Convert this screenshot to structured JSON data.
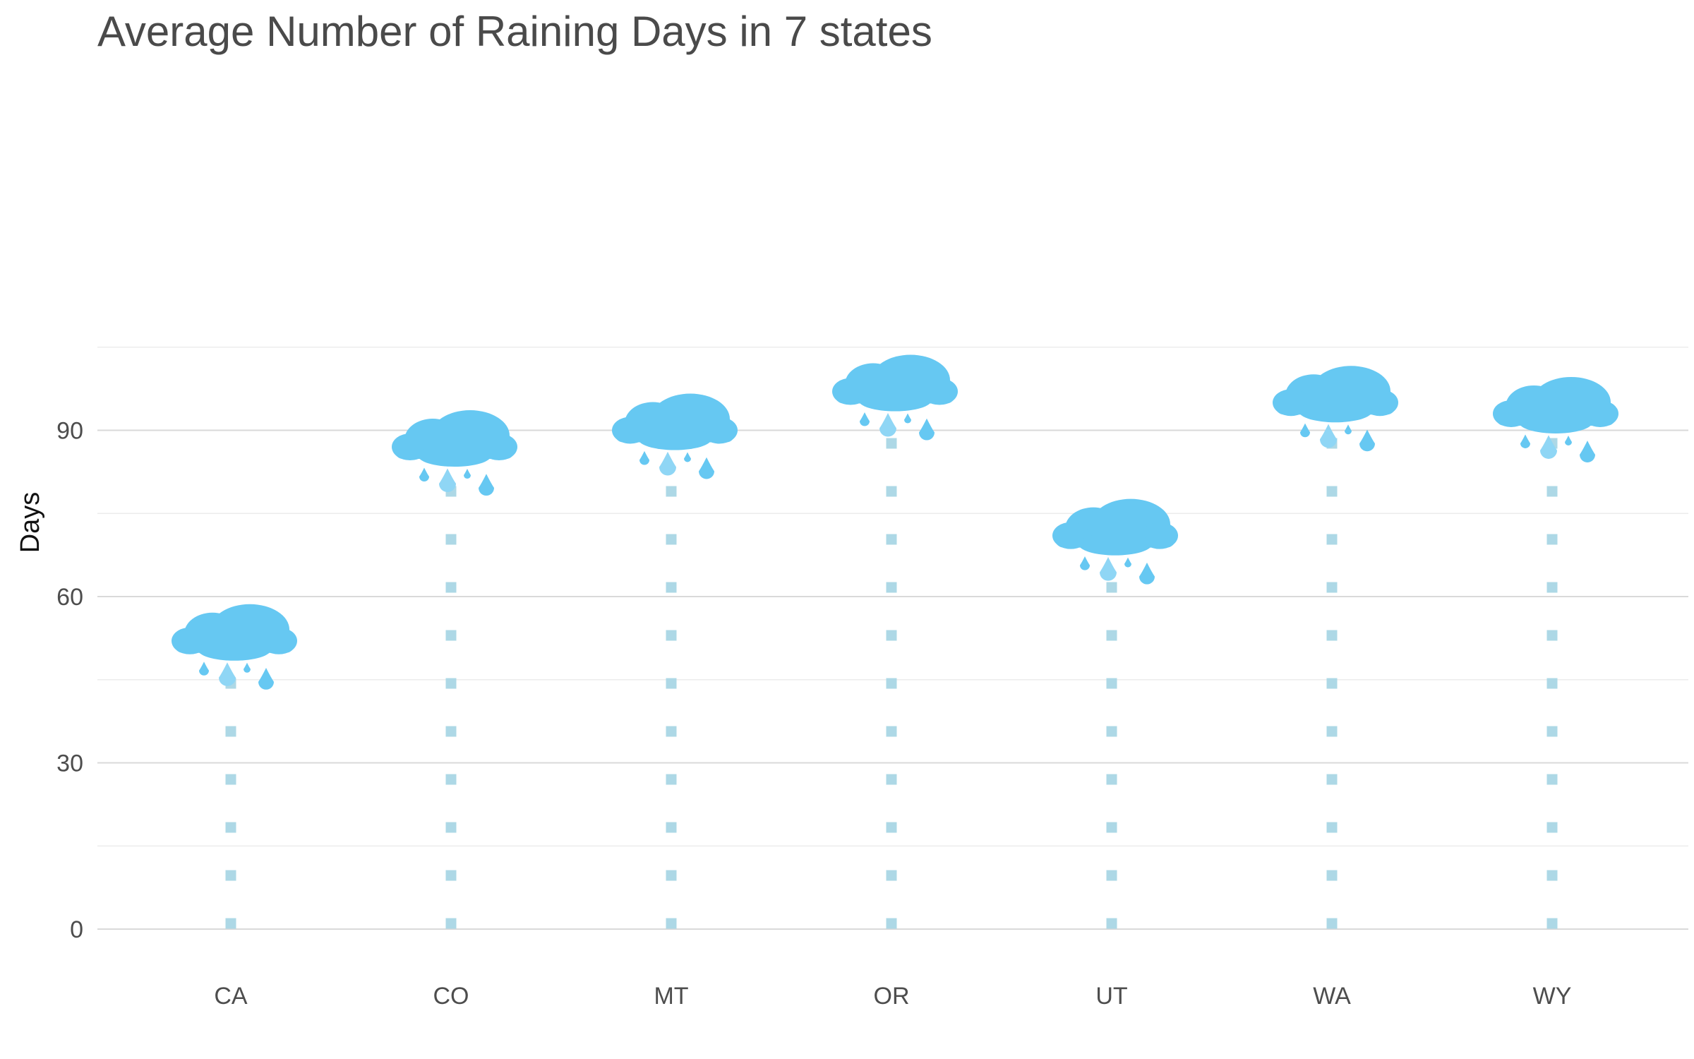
{
  "chart_data": {
    "type": "lollipop",
    "title": "Average Number of Raining Days in 7 states",
    "xlabel": "",
    "ylabel": "Days",
    "categories": [
      "CA",
      "CO",
      "MT",
      "OR",
      "UT",
      "WA",
      "WY"
    ],
    "values": [
      52,
      87,
      90,
      97,
      71,
      95,
      93
    ],
    "ylim": [
      0,
      105
    ],
    "yticks": [
      0,
      30,
      60,
      90
    ],
    "grid": true,
    "marker": "rain-cloud-icon",
    "colors": {
      "stem": "#add8e6",
      "cloud": "#66c8f2",
      "grid": "#d9d9d9"
    }
  }
}
